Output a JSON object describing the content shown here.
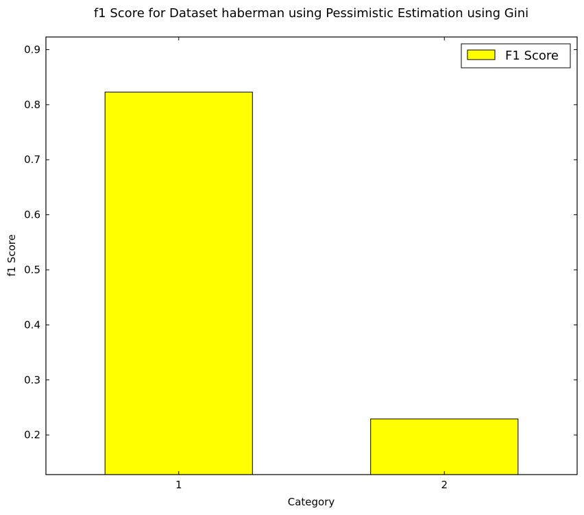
{
  "chart_data": {
    "type": "bar",
    "title": "f1 Score for Dataset haberman using Pessimistic Estimation using Gini",
    "xlabel": "Category",
    "ylabel": "f1 Score",
    "categories": [
      "1",
      "2"
    ],
    "series": [
      {
        "name": "F1 Score",
        "values": [
          0.823,
          0.229
        ],
        "color": "#ffff00"
      }
    ],
    "ylim": [
      0.128,
      0.923
    ],
    "yticks": [
      0.2,
      0.3,
      0.4,
      0.5,
      0.6,
      0.7,
      0.8,
      0.9
    ],
    "ytick_labels": [
      "0.2",
      "0.3",
      "0.4",
      "0.5",
      "0.6",
      "0.7",
      "0.8",
      "0.9"
    ],
    "grid": false,
    "legend_position": "top-right"
  }
}
